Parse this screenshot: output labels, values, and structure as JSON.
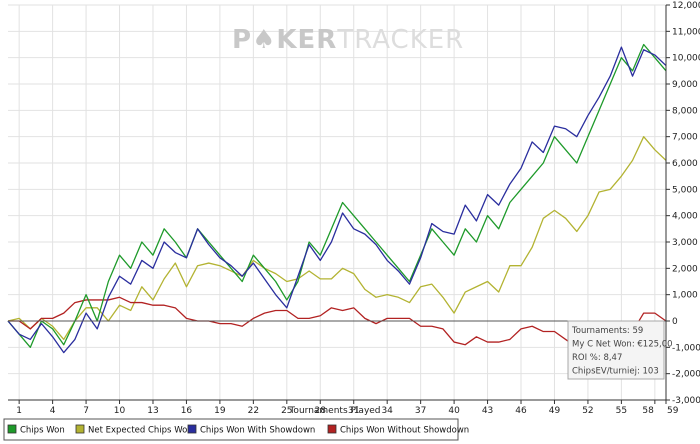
{
  "watermark": {
    "part1": "P",
    "part2": "KER",
    "part3": "TRACKER"
  },
  "chart_data": {
    "type": "line",
    "title": "",
    "xlabel": "Tournaments Played",
    "ylabel": "",
    "xlim": [
      0,
      59
    ],
    "ylim": [
      -3000,
      12000
    ],
    "yticks": [
      -3000,
      -2000,
      -1000,
      0,
      1000,
      2000,
      3000,
      4000,
      5000,
      6000,
      7000,
      8000,
      9000,
      10000,
      11000,
      12000
    ],
    "ytick_labels": [
      "-3,000",
      "-2,000",
      "-1,000",
      "0",
      "1,000",
      "2,000",
      "3,000",
      "4,000",
      "5,000",
      "6,000",
      "7,000",
      "8,000",
      "9,000",
      "10,000",
      "11,000",
      "12,000"
    ],
    "xticks": [
      1,
      4,
      7,
      10,
      13,
      16,
      19,
      22,
      25,
      28,
      31,
      34,
      37,
      40,
      43,
      46,
      49,
      52,
      55,
      58,
      59
    ],
    "ytick_side": "right",
    "legend_position": "bottom",
    "grid": true,
    "series": [
      {
        "name": "Chips Won",
        "color": "#1e9a2a",
        "x": [
          0,
          1,
          2,
          3,
          4,
          5,
          6,
          7,
          8,
          9,
          10,
          11,
          12,
          13,
          14,
          15,
          16,
          17,
          18,
          19,
          20,
          21,
          22,
          23,
          24,
          25,
          26,
          27,
          28,
          29,
          30,
          31,
          32,
          33,
          34,
          35,
          36,
          37,
          38,
          39,
          40,
          41,
          42,
          43,
          44,
          45,
          46,
          47,
          48,
          49,
          50,
          51,
          52,
          53,
          54,
          55,
          56,
          57,
          58,
          59
        ],
        "y": [
          0,
          -500,
          -1000,
          0,
          -300,
          -900,
          0,
          1000,
          0,
          1500,
          2500,
          2000,
          3000,
          2500,
          3500,
          3000,
          2400,
          3500,
          3000,
          2500,
          2000,
          1500,
          2500,
          2000,
          1500,
          800,
          1500,
          3000,
          2500,
          3500,
          4500,
          4000,
          3500,
          3000,
          2500,
          2000,
          1500,
          2500,
          3500,
          3000,
          2500,
          3500,
          3000,
          4000,
          3500,
          4500,
          5000,
          5500,
          6000,
          7000,
          6500,
          6000,
          7000,
          8000,
          9000,
          10000,
          9500,
          10500,
          10000,
          9500
        ]
      },
      {
        "name": "Net Expected Chips Won",
        "color": "#b3b332",
        "x": [
          0,
          1,
          2,
          3,
          4,
          5,
          6,
          7,
          8,
          9,
          10,
          11,
          12,
          13,
          14,
          15,
          16,
          17,
          18,
          19,
          20,
          21,
          22,
          23,
          24,
          25,
          26,
          27,
          28,
          29,
          30,
          31,
          32,
          33,
          34,
          35,
          36,
          37,
          38,
          39,
          40,
          41,
          42,
          43,
          44,
          45,
          46,
          47,
          48,
          49,
          50,
          51,
          52,
          53,
          54,
          55,
          56,
          57,
          58,
          59
        ],
        "y": [
          0,
          100,
          -300,
          100,
          -200,
          -700,
          0,
          500,
          500,
          0,
          600,
          400,
          1300,
          800,
          1600,
          2200,
          1300,
          2100,
          2200,
          2100,
          1900,
          1700,
          2300,
          2000,
          1800,
          1500,
          1600,
          1900,
          1600,
          1600,
          2000,
          1800,
          1200,
          900,
          1000,
          900,
          700,
          1300,
          1400,
          900,
          300,
          1100,
          1300,
          1500,
          1100,
          2100,
          2100,
          2800,
          3900,
          4200,
          3900,
          3400,
          4000,
          4900,
          5000,
          5500,
          6100,
          7000,
          6500,
          6100
        ]
      },
      {
        "name": "Chips Won With Showdown",
        "color": "#2a2e9e",
        "x": [
          0,
          1,
          2,
          3,
          4,
          5,
          6,
          7,
          8,
          9,
          10,
          11,
          12,
          13,
          14,
          15,
          16,
          17,
          18,
          19,
          20,
          21,
          22,
          23,
          24,
          25,
          26,
          27,
          28,
          29,
          30,
          31,
          32,
          33,
          34,
          35,
          36,
          37,
          38,
          39,
          40,
          41,
          42,
          43,
          44,
          45,
          46,
          47,
          48,
          49,
          50,
          51,
          52,
          53,
          54,
          55,
          56,
          57,
          58,
          59
        ],
        "y": [
          0,
          -500,
          -700,
          -100,
          -600,
          -1200,
          -700,
          300,
          -300,
          900,
          1700,
          1400,
          2300,
          2000,
          3000,
          2600,
          2400,
          3500,
          2900,
          2400,
          2100,
          1700,
          2200,
          1600,
          1000,
          500,
          1700,
          2900,
          2300,
          3000,
          4100,
          3500,
          3300,
          2900,
          2300,
          1900,
          1400,
          2400,
          3700,
          3400,
          3300,
          4400,
          3800,
          4800,
          4400,
          5200,
          5800,
          6800,
          6400,
          7400,
          7300,
          7000,
          7800,
          8500,
          9300,
          10400,
          9300,
          10300,
          10100,
          9700
        ]
      },
      {
        "name": "Chips Won Without Showdown",
        "color": "#b22222",
        "x": [
          0,
          1,
          2,
          3,
          4,
          5,
          6,
          7,
          8,
          9,
          10,
          11,
          12,
          13,
          14,
          15,
          16,
          17,
          18,
          19,
          20,
          21,
          22,
          23,
          24,
          25,
          26,
          27,
          28,
          29,
          30,
          31,
          32,
          33,
          34,
          35,
          36,
          37,
          38,
          39,
          40,
          41,
          42,
          43,
          44,
          45,
          46,
          47,
          48,
          49,
          50,
          51,
          52,
          53,
          54,
          55,
          56,
          57,
          58,
          59
        ],
        "y": [
          0,
          0,
          -300,
          100,
          100,
          300,
          700,
          800,
          800,
          800,
          900,
          700,
          700,
          600,
          600,
          500,
          100,
          0,
          0,
          -100,
          -100,
          -200,
          100,
          300,
          400,
          400,
          100,
          100,
          200,
          500,
          400,
          500,
          100,
          -100,
          100,
          100,
          100,
          -200,
          -200,
          -300,
          -800,
          -900,
          -600,
          -800,
          -800,
          -700,
          -300,
          -200,
          -400,
          -400,
          -700,
          -1000,
          -800,
          -600,
          -200,
          -200,
          -400,
          300,
          300,
          0
        ]
      }
    ],
    "tooltip": {
      "lines": [
        "Tournaments: 59",
        "My C Net Won: €125,00",
        "ROI %: 8,47",
        "ChipsEV/turniej: 103"
      ]
    }
  }
}
